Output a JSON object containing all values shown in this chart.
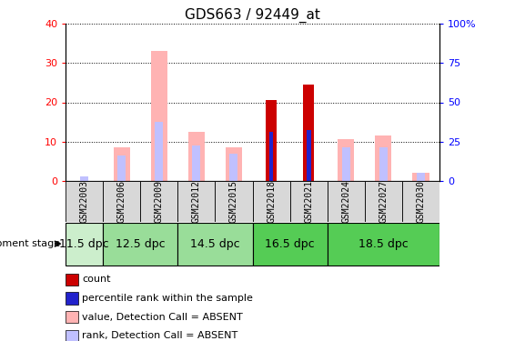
{
  "title": "GDS663 / 92449_at",
  "samples": [
    "GSM22003",
    "GSM22006",
    "GSM22009",
    "GSM22012",
    "GSM22015",
    "GSM22018",
    "GSM22021",
    "GSM22024",
    "GSM22027",
    "GSM22030"
  ],
  "count_values": [
    0,
    0,
    0,
    0,
    0,
    20.5,
    24.5,
    0,
    0,
    0
  ],
  "rank_values": [
    0,
    0,
    0,
    0,
    0,
    12.5,
    13,
    0,
    0,
    0
  ],
  "absent_value_values": [
    0,
    8.5,
    33,
    12.5,
    8.5,
    0,
    0,
    10.5,
    11.5,
    2
  ],
  "absent_rank_values": [
    1,
    6.5,
    15,
    9,
    7,
    0,
    0,
    8.5,
    8.5,
    2
  ],
  "left_ylim": [
    0,
    40
  ],
  "right_ylim": [
    0,
    100
  ],
  "left_yticks": [
    0,
    10,
    20,
    30,
    40
  ],
  "right_yticks": [
    0,
    25,
    50,
    75,
    100
  ],
  "left_tick_labels": [
    "0",
    "10",
    "20",
    "30",
    "40"
  ],
  "right_tick_labels": [
    "0",
    "25",
    "50",
    "75",
    "100%"
  ],
  "color_count": "#cc0000",
  "color_rank": "#2222cc",
  "color_absent_value": "#ffb3b3",
  "color_absent_rank": "#c0c0ff",
  "stage_defs": [
    {
      "label": "11.5 dpc",
      "indices": [
        0
      ],
      "color": "#cceecc"
    },
    {
      "label": "12.5 dpc",
      "indices": [
        1,
        2
      ],
      "color": "#99dd99"
    },
    {
      "label": "14.5 dpc",
      "indices": [
        3,
        4
      ],
      "color": "#99dd99"
    },
    {
      "label": "16.5 dpc",
      "indices": [
        5,
        6
      ],
      "color": "#55cc55"
    },
    {
      "label": "18.5 dpc",
      "indices": [
        7,
        8,
        9
      ],
      "color": "#55cc55"
    }
  ],
  "legend_items": [
    {
      "color": "#cc0000",
      "label": "count"
    },
    {
      "color": "#2222cc",
      "label": "percentile rank within the sample"
    },
    {
      "color": "#ffb3b3",
      "label": "value, Detection Call = ABSENT"
    },
    {
      "color": "#c0c0ff",
      "label": "rank, Detection Call = ABSENT"
    }
  ],
  "title_fontsize": 11,
  "tick_fontsize": 8,
  "sample_fontsize": 7,
  "stage_fontsize": 9,
  "legend_fontsize": 8
}
